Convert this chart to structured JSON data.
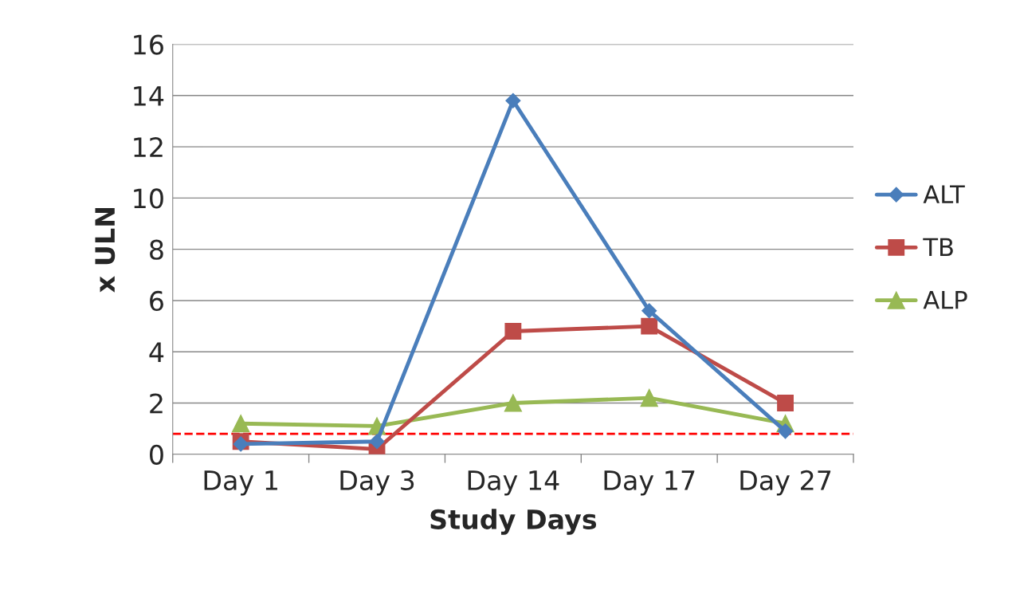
{
  "chart_data": {
    "type": "line",
    "xlabel": "Study Days",
    "ylabel": "x ULN",
    "categories": [
      "Day 1",
      "Day 3",
      "Day 14",
      "Day 17",
      "Day 27"
    ],
    "series": [
      {
        "name": "ALT",
        "color": "#4a7ebb",
        "marker": "diamond",
        "values": [
          0.4,
          0.5,
          13.8,
          5.6,
          0.9
        ]
      },
      {
        "name": "TB",
        "color": "#be4b48",
        "marker": "square",
        "values": [
          0.5,
          0.2,
          4.8,
          5.0,
          2.0
        ]
      },
      {
        "name": "ALP",
        "color": "#98b954",
        "marker": "triangle",
        "values": [
          1.2,
          1.1,
          2.0,
          2.2,
          1.2
        ]
      }
    ],
    "ylim": [
      0,
      16
    ],
    "yticks": [
      0,
      2,
      4,
      6,
      8,
      10,
      12,
      14,
      16
    ],
    "grid": "y",
    "legend": "right",
    "line_style": "solid",
    "ref_lines": [
      {
        "axis": "y",
        "value": 0.8,
        "color": "#ff0000",
        "line_style": "dashed"
      }
    ]
  }
}
